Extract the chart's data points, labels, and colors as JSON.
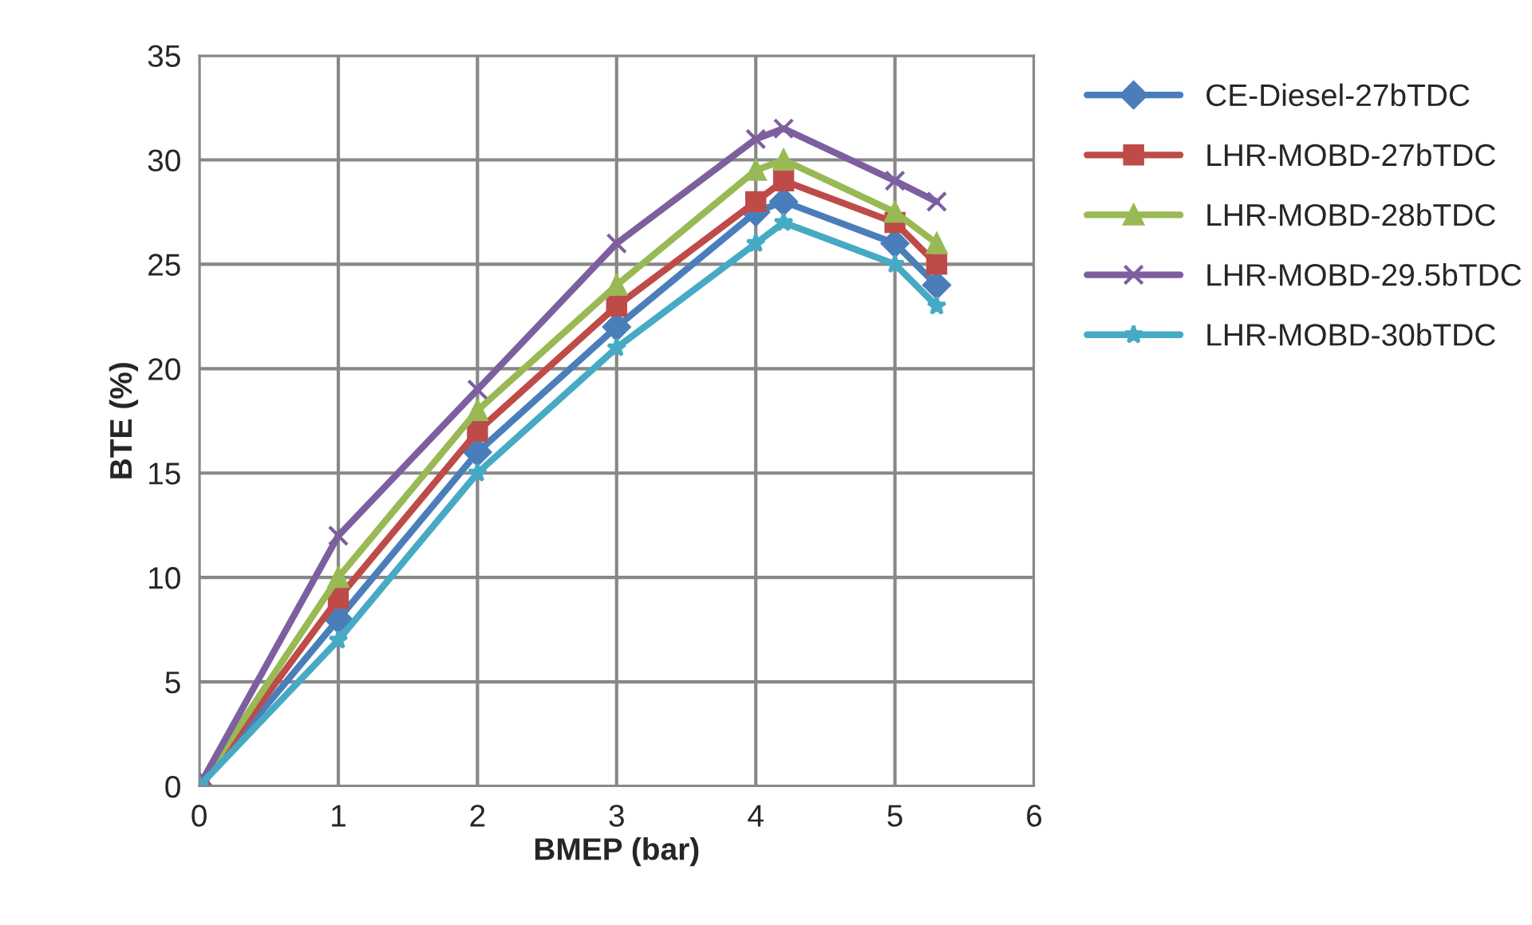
{
  "chart_data": {
    "type": "line",
    "xlabel": "BMEP (bar)",
    "ylabel": "BTE (%)",
    "x": [
      0,
      1,
      2,
      3,
      4,
      4.2,
      5,
      5.3
    ],
    "series": [
      {
        "name": "CE-Diesel-27bTDC",
        "color": "#4a7ebb",
        "marker": "diamond",
        "values": [
          0,
          8,
          16,
          22,
          27.5,
          28,
          26,
          24
        ]
      },
      {
        "name": "LHR-MOBD-27bTDC",
        "color": "#be4b48",
        "marker": "square",
        "values": [
          0,
          9,
          17,
          23,
          28,
          29,
          27,
          25
        ]
      },
      {
        "name": "LHR-MOBD-28bTDC",
        "color": "#98b954",
        "marker": "triangle",
        "values": [
          0,
          10,
          18,
          24,
          29.5,
          30,
          27.5,
          26
        ]
      },
      {
        "name": "LHR-MOBD-29.5bTDC",
        "color": "#7d5fa0",
        "marker": "cross",
        "values": [
          0,
          12,
          19,
          26,
          31,
          31.5,
          29,
          28
        ]
      },
      {
        "name": "LHR-MOBD-30bTDC",
        "color": "#46aac5",
        "marker": "star",
        "values": [
          0,
          7,
          15,
          21,
          26,
          27,
          25,
          23
        ]
      }
    ],
    "xlim": [
      0,
      6
    ],
    "xticks": [
      0,
      1,
      2,
      3,
      4,
      5,
      6
    ],
    "ylim": [
      0,
      35
    ],
    "yticks": [
      0,
      5,
      10,
      15,
      20,
      25,
      30,
      35
    ],
    "grid": true,
    "legend": "right",
    "line_style": "solid"
  }
}
